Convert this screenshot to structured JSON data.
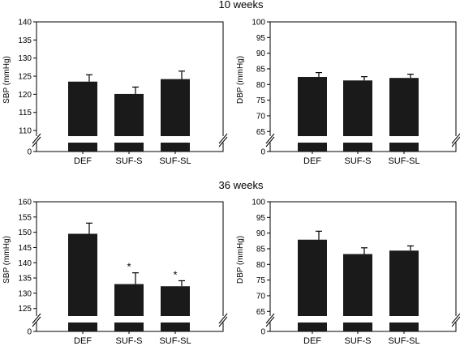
{
  "sections": [
    {
      "title": "10 weeks"
    },
    {
      "title": "36 weeks"
    }
  ],
  "colors": {
    "bar": "#1a1a1a",
    "axis": "#000000",
    "background": "#ffffff"
  },
  "chart_data": [
    {
      "type": "bar",
      "section": "10 weeks",
      "ylabel": "SBP (mmHg)",
      "categories": [
        "DEF",
        "SUF-S",
        "SUF-SL"
      ],
      "values": [
        123.5,
        120.1,
        124.2
      ],
      "errors": [
        1.9,
        1.9,
        2.2
      ],
      "significance": [
        "",
        "",
        ""
      ],
      "ylim": [
        108,
        140
      ],
      "yticks": [
        110,
        115,
        120,
        125,
        130,
        135,
        140
      ],
      "axis_break": true,
      "break_zero_label": "0"
    },
    {
      "type": "bar",
      "section": "10 weeks",
      "ylabel": "DBP (mmHg)",
      "categories": [
        "DEF",
        "SUF-S",
        "SUF-SL"
      ],
      "values": [
        82.4,
        81.3,
        82.1
      ],
      "errors": [
        1.4,
        1.2,
        1.2
      ],
      "significance": [
        "",
        "",
        ""
      ],
      "ylim": [
        63,
        100
      ],
      "yticks": [
        65,
        70,
        75,
        80,
        85,
        90,
        95,
        100
      ],
      "axis_break": true,
      "break_zero_label": "0"
    },
    {
      "type": "bar",
      "section": "36 weeks",
      "ylabel": "SBP (mmHg)",
      "categories": [
        "DEF",
        "SUF-S",
        "SUF-SL"
      ],
      "values": [
        149.5,
        133.0,
        132.3
      ],
      "errors": [
        3.5,
        3.7,
        1.8
      ],
      "significance": [
        "",
        "*",
        "*"
      ],
      "ylim": [
        122,
        160
      ],
      "yticks": [
        125,
        130,
        135,
        140,
        145,
        150,
        155,
        160
      ],
      "axis_break": true,
      "break_zero_label": "0"
    },
    {
      "type": "bar",
      "section": "36 weeks",
      "ylabel": "DBP (mmHg)",
      "categories": [
        "DEF",
        "SUF-S",
        "SUF-SL"
      ],
      "values": [
        87.9,
        83.3,
        84.4
      ],
      "errors": [
        2.7,
        2.0,
        1.5
      ],
      "significance": [
        "",
        "",
        ""
      ],
      "ylim": [
        63,
        100
      ],
      "yticks": [
        65,
        70,
        75,
        80,
        85,
        90,
        95,
        100
      ],
      "axis_break": true,
      "break_zero_label": "0"
    }
  ]
}
